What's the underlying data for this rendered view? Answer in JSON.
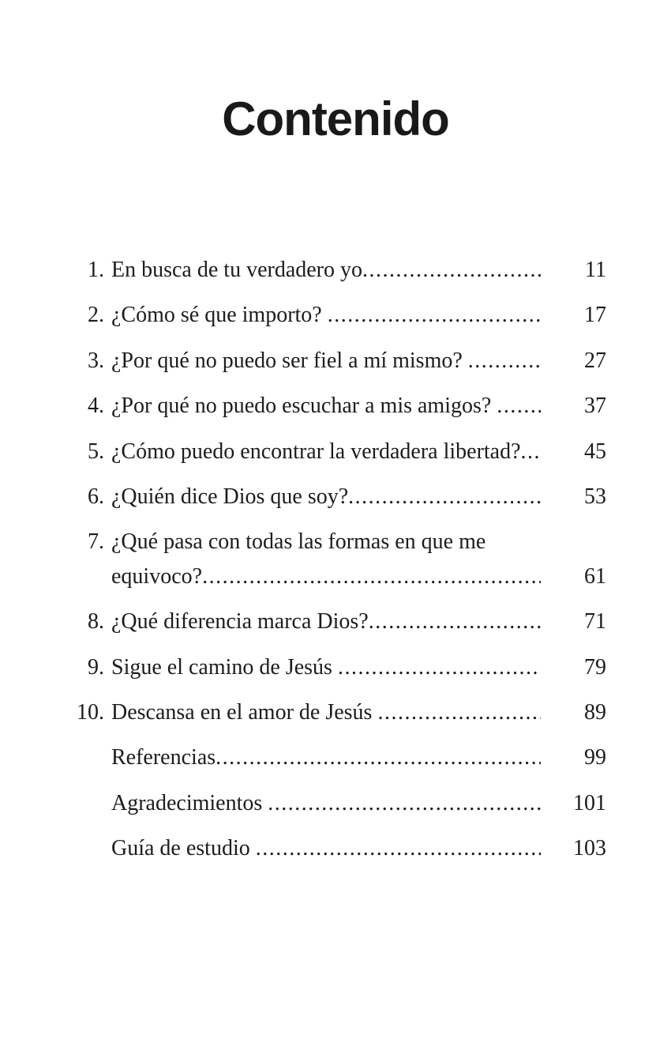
{
  "header": {
    "title": "Contenido"
  },
  "toc": {
    "rows": [
      {
        "num": "1.",
        "title": "En busca de tu verdadero yo",
        "page": "11"
      },
      {
        "num": "2.",
        "title": "¿Cómo sé que importo? ",
        "page": "17"
      },
      {
        "num": "3.",
        "title": "¿Por qué no puedo ser fiel a mí mismo? ",
        "page": "27"
      },
      {
        "num": "4.",
        "title": "¿Por qué no puedo escuchar a mis amigos? ",
        "page": "37"
      },
      {
        "num": "5.",
        "title": "¿Cómo puedo encontrar la verdadera libertad?",
        "page": "45"
      },
      {
        "num": "6.",
        "title": "¿Quién dice Dios que soy?",
        "page": "53"
      },
      {
        "num": "7.",
        "title": "¿Qué pasa con todas las formas en que me",
        "page": ""
      },
      {
        "num": "",
        "title": "equivoco?",
        "page": "61"
      },
      {
        "num": "8.",
        "title": "¿Qué diferencia marca Dios?",
        "page": "71"
      },
      {
        "num": "9.",
        "title": "Sigue el camino de Jesús ",
        "page": "79"
      },
      {
        "num": "10.",
        "title": "Descansa en el amor de Jesús ",
        "page": "89"
      },
      {
        "num": "",
        "title": "Referencias",
        "page": "99"
      },
      {
        "num": "",
        "title": "Agradecimientos ",
        "page": "101"
      },
      {
        "num": "",
        "title": "Guía de estudio ",
        "page": "103"
      }
    ]
  }
}
